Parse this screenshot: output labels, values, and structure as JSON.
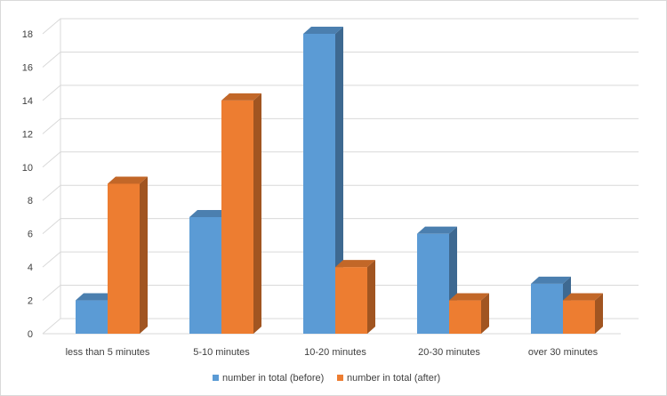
{
  "chart_data": {
    "type": "bar",
    "categories": [
      "less than 5 minutes",
      "5-10 minutes",
      "10-20 minutes",
      "20-30 minutes",
      "over 30 minutes"
    ],
    "series": [
      {
        "name": "number in total (before)",
        "values": [
          2,
          7,
          18,
          6,
          3
        ],
        "color": "#5b9bd5"
      },
      {
        "name": "number in total (after)",
        "values": [
          9,
          14,
          4,
          2,
          2
        ],
        "color": "#ed7d31"
      }
    ],
    "ylim": [
      0,
      18
    ],
    "yticks": [
      0,
      2,
      4,
      6,
      8,
      10,
      12,
      14,
      16,
      18
    ],
    "grid": true,
    "style": "3d-clustered-column",
    "legend": "bottom"
  }
}
